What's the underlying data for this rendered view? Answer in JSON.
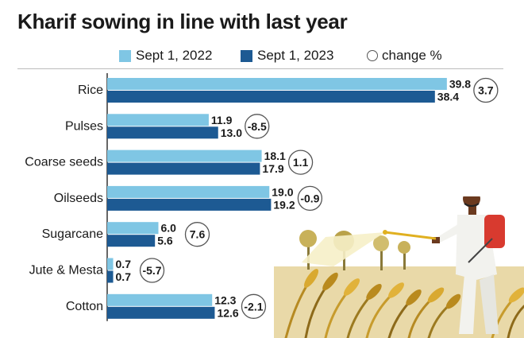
{
  "title": "Kharif sowing in line with last year",
  "legend": {
    "series1": "Sept 1, 2022",
    "series2": "Sept 1, 2023",
    "change": "change %"
  },
  "colors": {
    "series1": "#7fc6e4",
    "series2": "#1d5a93",
    "axis": "#333333",
    "circle": "#555555",
    "text": "#1a1a1a"
  },
  "chart_data": {
    "type": "bar",
    "orientation": "horizontal",
    "categories": [
      "Rice",
      "Pulses",
      "Coarse seeds",
      "Oilseeds",
      "Sugarcane",
      "Jute & Mesta",
      "Cotton"
    ],
    "series": [
      {
        "name": "Sept 1, 2022",
        "values": [
          39.8,
          11.9,
          18.1,
          19.0,
          6.0,
          0.7,
          12.3
        ]
      },
      {
        "name": "Sept 1, 2023",
        "values": [
          38.4,
          13.0,
          17.9,
          19.2,
          5.6,
          0.7,
          12.6
        ]
      }
    ],
    "value_labels": {
      "Sept 1, 2022": [
        "39.8",
        "11.9",
        "18.1",
        "19.0",
        "6.0",
        "0.7",
        "12.3"
      ],
      "Sept 1, 2023": [
        "38.4",
        "13.0",
        "17.9",
        "19.2",
        "5.6",
        "0.7",
        "12.6"
      ]
    },
    "change_pct": [
      "3.7",
      "-8.5",
      "1.1",
      "-0.9",
      "7.6",
      "-5.7",
      "-2.1"
    ],
    "xlim": [
      0,
      40
    ],
    "grid": false,
    "legend_position": "top"
  },
  "illustration": "farmer-spraying-crops"
}
